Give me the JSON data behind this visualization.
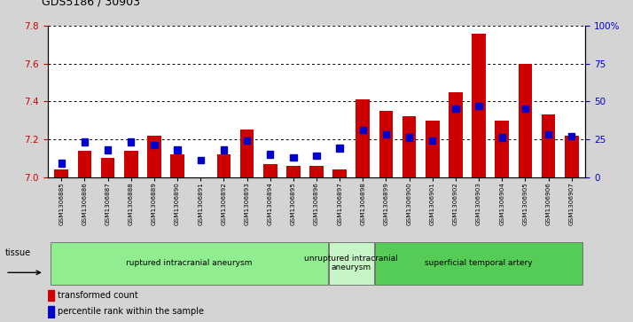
{
  "title": "GDS5186 / 30903",
  "samples": [
    "GSM1306885",
    "GSM1306886",
    "GSM1306887",
    "GSM1306888",
    "GSM1306889",
    "GSM1306890",
    "GSM1306891",
    "GSM1306892",
    "GSM1306893",
    "GSM1306894",
    "GSM1306895",
    "GSM1306896",
    "GSM1306897",
    "GSM1306898",
    "GSM1306899",
    "GSM1306900",
    "GSM1306901",
    "GSM1306902",
    "GSM1306903",
    "GSM1306904",
    "GSM1306905",
    "GSM1306906",
    "GSM1306907"
  ],
  "red_values": [
    7.04,
    7.14,
    7.1,
    7.14,
    7.22,
    7.12,
    7.0,
    7.12,
    7.25,
    7.07,
    7.06,
    7.06,
    7.04,
    7.41,
    7.35,
    7.32,
    7.3,
    7.45,
    7.76,
    7.3,
    7.6,
    7.33,
    7.22
  ],
  "blue_percentiles": [
    8,
    22,
    17,
    22,
    20,
    17,
    10,
    17,
    23,
    14,
    12,
    13,
    18,
    30,
    27,
    25,
    23,
    44,
    46,
    25,
    44,
    27,
    26
  ],
  "ylim_left": [
    7.0,
    7.8
  ],
  "ylim_right": [
    0,
    100
  ],
  "yticks_left": [
    7.0,
    7.2,
    7.4,
    7.6,
    7.8
  ],
  "yticks_right": [
    0,
    25,
    50,
    75,
    100
  ],
  "ytick_labels_right": [
    "0",
    "25",
    "50",
    "75",
    "100%"
  ],
  "groups": [
    {
      "label": "ruptured intracranial aneurysm",
      "start": 0,
      "end": 12,
      "color": "#90EE90"
    },
    {
      "label": "unruptured intracranial\naneurysm",
      "start": 12,
      "end": 14,
      "color": "#c8f5c8"
    },
    {
      "label": "superficial temporal artery",
      "start": 14,
      "end": 23,
      "color": "#55CC55"
    }
  ],
  "bar_color": "#CC0000",
  "blue_color": "#0000CC",
  "background_color": "#D4D4D4",
  "plot_bg_color": "#FFFFFF",
  "ylabel_left_color": "#CC0000",
  "ylabel_right_color": "#0000CC",
  "tissue_label_color": "#000000"
}
